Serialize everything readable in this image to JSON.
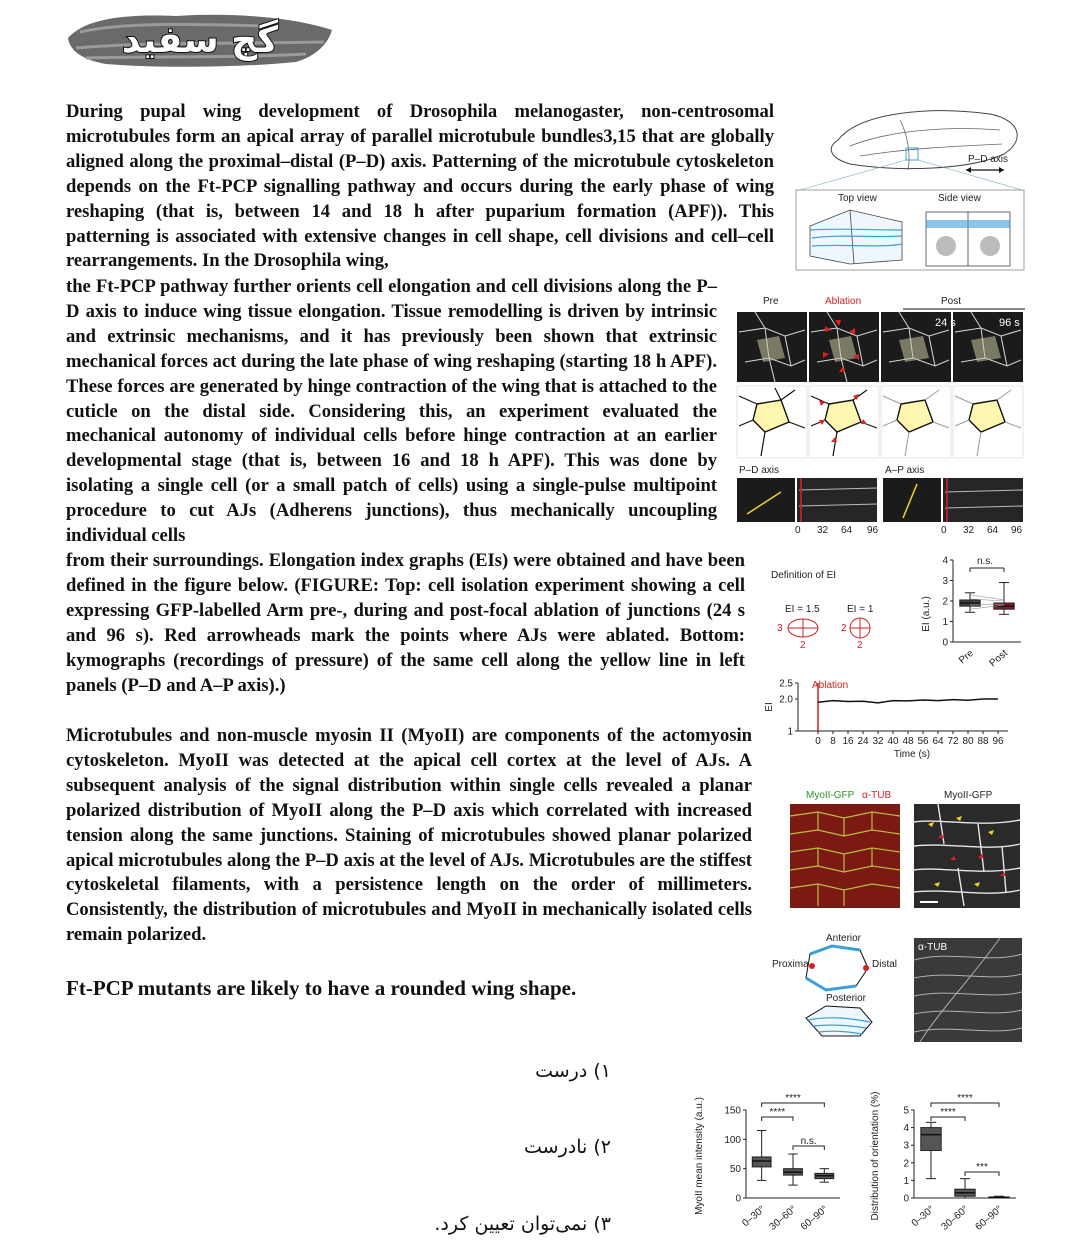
{
  "logo": {
    "text": "گچ سفید"
  },
  "paragraphs": {
    "p1": "During pupal wing development of Drosophila melanogaster, non-centrosomal microtubules form an apical array of parallel microtubule bundles3,15 that are globally aligned along the proximal–distal (P–D) axis. Patterning of the microtubule cytoskeleton depends on the Ft-PCP signalling pathway and occurs during the early phase of wing reshaping (that is, between 14 and 18 h after puparium formation (APF)). This patterning is associated with extensive changes in cell shape, cell divisions and cell–cell rearrangements. In the Drosophila wing,",
    "p2": "the Ft-PCP pathway further orients cell elongation and cell divisions along the P–D axis to induce wing tissue elongation. Tissue remodelling is driven by intrinsic and extrinsic mechanisms, and it has previously been shown that extrinsic mechanical forces act during the late phase of wing reshaping (starting 18 h APF). These forces are generated by hinge contraction of the wing that is attached to the cuticle on the distal side. Considering this, an experiment evaluated the mechanical autonomy of individual cells before hinge contraction at an earlier developmental stage (that is, between 16 and 18 h APF). This was done by isolating a single cell (or a small patch of cells) using a single-pulse multipoint procedure to cut AJs (Adherens junctions), thus mechanically uncoupling individual cells",
    "p3": "from their surroundings. Elongation index graphs (EIs) were obtained and have been defined in the figure below. (FIGURE: Top: cell isolation experiment showing a cell expressing GFP-labelled Arm pre-, during and post-focal ablation of junctions (24 s and 96 s). Red arrowheads mark the points where AJs were ablated. Bottom: kymographs (recordings of pressure) of the same cell along the yellow line in left panels (P–D and A–P axis).)",
    "p4": "Microtubules and non-muscle myosin II (MyoII) are components of the actomyosin cytoskeleton. MyoII was detected at the apical cell cortex at the level of AJs. A subsequent analysis of the signal distribution within single cells revealed a planar polarized distribution of MyoII along the P–D axis which correlated with increased tension along the same junctions. Staining of microtubules showed planar polarized apical microtubules along the P–D axis at the level of AJs. Microtubules are the stiffest cytoskeletal filaments, with a persistence length on the order of millimeters. Consistently, the distribution of microtubules and MyoII in mechanically isolated cells remain polarized."
  },
  "statement": "Ft-PCP mutants are likely to have a rounded wing shape.",
  "options": [
    {
      "number": "۱)",
      "text": "درست"
    },
    {
      "number": "۲)",
      "text": "نادرست"
    },
    {
      "number": "۳)",
      "text": "نمی‌توان تعیین کرد."
    }
  ],
  "figures": {
    "wing": {
      "pd_axis": "P–D axis",
      "top_view": "Top view",
      "side_view": "Side view"
    },
    "ablation": {
      "pre": "Pre",
      "ablation": "Ablation",
      "post": "Post",
      "t1": "24 s",
      "t2": "96 s",
      "pd_axis": "P–D axis",
      "ap_axis": "A–P axis",
      "ticks": [
        "0",
        "32",
        "64",
        "96"
      ]
    },
    "ei_def": {
      "title": "Definition of EI",
      "ei1": "EI = 1.5",
      "ei2": "EI = 1",
      "a1": "3",
      "b1": "2",
      "a2": "2",
      "b2": "2"
    },
    "ei_box": {
      "ylabel": "EI (a.u.)",
      "sig": "n.s.",
      "yticks": [
        "0",
        "1",
        "2",
        "3",
        "4"
      ],
      "cats": [
        "Pre",
        "Post"
      ]
    },
    "ei_time": {
      "ylabel": "EI",
      "xlabel": "Time (s)",
      "marker": "Ablation",
      "yticks": [
        "1",
        "2.0",
        "2.5"
      ],
      "xticks": [
        "0",
        "8",
        "16",
        "24",
        "32",
        "40",
        "48",
        "56",
        "64",
        "72",
        "80",
        "88",
        "96"
      ]
    },
    "myo": {
      "left_green": "MyoII-GFP",
      "left_red": "α-TUB",
      "right": "MyoII-GFP"
    },
    "schematic": {
      "anterior": "Anterior",
      "proximal": "Proximal",
      "distal": "Distal",
      "posterior": "Posterior",
      "tub": "α-TUB"
    },
    "box1": {
      "ylabel": "MyoII mean intensity (a.u.)",
      "yticks": [
        "0",
        "50",
        "100",
        "150"
      ],
      "cats": [
        "0–30°",
        "30–60°",
        "60–90°"
      ],
      "sig": [
        "****",
        "****",
        "n.s."
      ]
    },
    "box2": {
      "ylabel": "Distribution of orientation (%)",
      "yticks": [
        "0",
        "1",
        "2",
        "3",
        "4",
        "5"
      ],
      "cats": [
        "0–30°",
        "30–60°",
        "60–90°"
      ],
      "sig": [
        "****",
        "****",
        "***"
      ]
    }
  },
  "chart_data": [
    {
      "type": "box",
      "ylabel": "EI (a.u.)",
      "categories": [
        "Pre",
        "Post"
      ],
      "ylim": [
        0,
        4
      ],
      "annotation": "n.s.",
      "boxes": [
        {
          "q1": 1.75,
          "median": 1.9,
          "q3": 2.05,
          "min": 1.45,
          "max": 2.4
        },
        {
          "q1": 1.6,
          "median": 1.75,
          "q3": 1.9,
          "min": 1.35,
          "max": 2.9
        }
      ]
    },
    {
      "type": "line",
      "xlabel": "Time (s)",
      "ylabel": "EI",
      "x": [
        0,
        8,
        16,
        24,
        32,
        40,
        48,
        56,
        64,
        72,
        80,
        88,
        96
      ],
      "values": [
        1.9,
        1.95,
        1.92,
        1.93,
        1.88,
        1.95,
        1.94,
        1.97,
        1.95,
        1.98,
        1.96,
        2.0,
        2.0
      ],
      "ylim": [
        1,
        2.5
      ],
      "annotation": "Ablation"
    },
    {
      "type": "box",
      "ylabel": "MyoII mean intensity (a.u.)",
      "categories": [
        "0–30°",
        "30–60°",
        "60–90°"
      ],
      "ylim": [
        0,
        150
      ],
      "significance": [
        "****",
        "****",
        "n.s."
      ],
      "boxes": [
        {
          "q1": 53,
          "median": 63,
          "q3": 70,
          "min": 30,
          "max": 115
        },
        {
          "q1": 39,
          "median": 44,
          "q3": 50,
          "min": 22,
          "max": 75
        },
        {
          "q1": 33,
          "median": 38,
          "q3": 42,
          "min": 27,
          "max": 50
        }
      ]
    },
    {
      "type": "box",
      "ylabel": "Distribution of orientation (%)",
      "categories": [
        "0–30°",
        "30–60°",
        "60–90°"
      ],
      "ylim": [
        0,
        5
      ],
      "significance": [
        "****",
        "****",
        "***"
      ],
      "boxes": [
        {
          "q1": 2.7,
          "median": 3.6,
          "q3": 4.0,
          "min": 1.1,
          "max": 4.3
        },
        {
          "q1": 0.1,
          "median": 0.3,
          "q3": 0.5,
          "min": 0.0,
          "max": 1.1
        },
        {
          "q1": 0.0,
          "median": 0.03,
          "q3": 0.06,
          "min": 0.0,
          "max": 0.1
        }
      ]
    }
  ]
}
